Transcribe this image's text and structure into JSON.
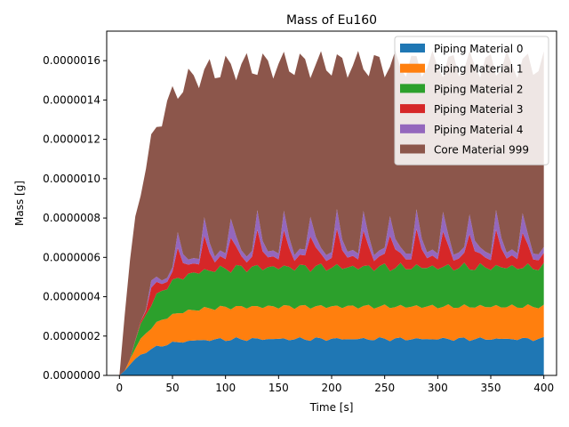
{
  "chart_data": {
    "type": "area",
    "stacked": true,
    "title": "Mass of Eu160",
    "xlabel": "Time [s]",
    "ylabel": "Mass [g]",
    "xlim": [
      -12,
      412
    ],
    "ylim": [
      0,
      1.75e-06
    ],
    "xticks": [
      0,
      50,
      100,
      150,
      200,
      250,
      300,
      350,
      400
    ],
    "xtick_labels": [
      "0",
      "50",
      "100",
      "150",
      "200",
      "250",
      "300",
      "350",
      "400"
    ],
    "yticks": [
      0,
      2e-07,
      4e-07,
      6e-07,
      8e-07,
      1e-06,
      1.2e-06,
      1.4e-06,
      1.6e-06
    ],
    "ytick_labels": [
      "0.0000000",
      "0.0000002",
      "0.0000004",
      "0.0000006",
      "0.0000008",
      "0.0000010",
      "0.0000012",
      "0.0000014",
      "0.0000016"
    ],
    "legend_position": "top-right",
    "x_step": 5,
    "x_start": 0,
    "x_end": 400,
    "series": [
      {
        "name": "Piping Material 0",
        "color": "#1f77b4"
      },
      {
        "name": "Piping Material 1",
        "color": "#ff7f0e"
      },
      {
        "name": "Piping Material 2",
        "color": "#2ca02c"
      },
      {
        "name": "Piping Material 3",
        "color": "#d62728"
      },
      {
        "name": "Piping Material 4",
        "color": "#9467bd"
      },
      {
        "name": "Core Material 999",
        "color": "#8c564b"
      }
    ],
    "steady_state": {
      "piping_0": 1.85e-07,
      "piping_1": 1.65e-07,
      "piping_2": 2e-07,
      "piping_3_low": 5e-08,
      "piping_3_high": 1.8e-07,
      "piping_4_low": 3e-08,
      "piping_4_high": 1e-07,
      "total_low": 1.51e-06,
      "total_high": 1.65e-06
    },
    "rise_time_constant": 22,
    "peak_period": 25
  }
}
